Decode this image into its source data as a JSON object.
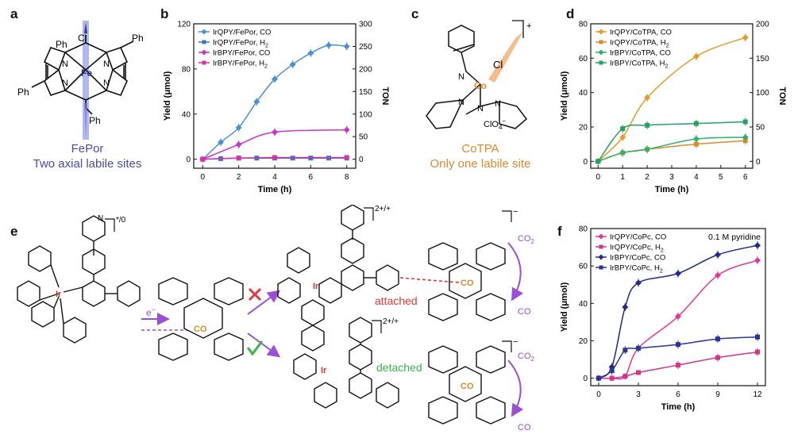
{
  "panels": {
    "a": {
      "letter": "a",
      "labels": {
        "ph": "Ph",
        "cl": "Cl",
        "fe": "Fe",
        "n": "N"
      },
      "caption_line1": "FePor",
      "caption_line2": "Two axial labile sites",
      "caption_color": "#4a4aa8"
    },
    "b": {
      "letter": "b",
      "chart_data": {
        "type": "line",
        "xlabel": "Time (h)",
        "ylabel": "Yield (μmol)",
        "y2label": "TON",
        "xlim": [
          -0.5,
          8.5
        ],
        "ylim": [
          -8,
          120
        ],
        "y2lim": [
          -20,
          300
        ],
        "xticks": [
          0,
          2,
          4,
          6,
          8
        ],
        "yticks": [
          0,
          40,
          80,
          120
        ],
        "y2ticks": [
          0,
          50,
          100,
          150,
          200,
          250,
          300
        ],
        "legend_position": "top-left",
        "series": [
          {
            "name": "IrQPY/FePor, CO",
            "sub": "",
            "color": "#4a90d9",
            "marker": "diamond",
            "x": [
              0,
              1,
              2,
              3,
              4,
              5,
              6,
              7,
              8
            ],
            "y": [
              0,
              15,
              28,
              51,
              71,
              84,
              94,
              101,
              100
            ]
          },
          {
            "name": "IrQPY/FePor, H",
            "sub": "2",
            "color": "#3a78c2",
            "marker": "square",
            "x": [
              0,
              1,
              2,
              3,
              4,
              5,
              6,
              7,
              8
            ],
            "y": [
              0,
              0.5,
              1,
              1,
              1,
              1,
              1,
              1,
              1
            ]
          },
          {
            "name": "IrBPY/FePor, CO",
            "sub": "",
            "color": "#cc33cc",
            "marker": "diamond",
            "x": [
              0,
              2,
              4,
              8
            ],
            "y": [
              0,
              13,
              24,
              26
            ]
          },
          {
            "name": "IrBPY/FePor, H",
            "sub": "2",
            "color": "#d633a8",
            "marker": "square",
            "x": [
              0,
              2,
              4,
              8
            ],
            "y": [
              0,
              1,
              1.5,
              1.5
            ]
          }
        ]
      }
    },
    "c": {
      "letter": "c",
      "labels": {
        "co": "Co",
        "cl": "Cl",
        "n": "N",
        "counter": "ClO",
        "counter_sub": "4",
        "counter_sup": "−",
        "charge": "+"
      },
      "caption_line1": "CoTPA",
      "caption_line2": "Only one labile site",
      "caption_color": "#e08a2e"
    },
    "d": {
      "letter": "d",
      "chart_data": {
        "type": "line",
        "xlabel": "Time (h)",
        "ylabel": "Yield (μmol)",
        "y2label": "TON",
        "xlim": [
          -0.3,
          6.3
        ],
        "ylim": [
          -4,
          80
        ],
        "y2lim": [
          -10,
          200
        ],
        "xticks": [
          0,
          1,
          2,
          3,
          4,
          5,
          6
        ],
        "yticks": [
          0,
          20,
          40,
          60,
          80
        ],
        "y2ticks": [
          0,
          50,
          100,
          150,
          200
        ],
        "legend_position": "top-left",
        "series": [
          {
            "name": "IrQPY/CoTPA, CO",
            "sub": "",
            "color": "#e89a2a",
            "marker": "diamond",
            "x": [
              0,
              1,
              2,
              4,
              6
            ],
            "y": [
              0,
              14,
              37,
              61,
              72
            ]
          },
          {
            "name": "IrQPY/CoTPA, H",
            "sub": "2",
            "color": "#e08a2e",
            "marker": "square",
            "x": [
              0,
              1,
              2,
              4,
              6
            ],
            "y": [
              0,
              5,
              7,
              10,
              12
            ]
          },
          {
            "name": "IrBPY/CoTPA, CO",
            "sub": "",
            "color": "#2bb56b",
            "marker": "diamond",
            "x": [
              0,
              1,
              2,
              4,
              6
            ],
            "y": [
              0,
              5,
              7,
              13,
              14
            ]
          },
          {
            "name": "IrBPY/CoTPA, H",
            "sub": "2",
            "color": "#23a35e",
            "marker": "square",
            "x": [
              0,
              1,
              2,
              4,
              6
            ],
            "y": [
              0,
              19,
              21,
              22,
              23
            ]
          }
        ]
      }
    },
    "e": {
      "letter": "e",
      "labels": {
        "ir": "Ir",
        "co": "CO",
        "n": "N",
        "charge_left": "*/0",
        "charge_top": "2+/+",
        "charge_bottom": "2+/+",
        "charge_minus": "−",
        "electron": "e",
        "electron_sup": "−",
        "attached": "attached",
        "detached": "detached",
        "co2": "CO",
        "co2_sub": "2"
      },
      "colors": {
        "attached": "#e03a3a",
        "detached": "#3cb34a",
        "arrow": "#9b4fd6",
        "co_atom": "#e08a2e",
        "ir_atom": "#c0392b"
      }
    },
    "f": {
      "letter": "f",
      "chart_data": {
        "type": "line",
        "annotation": "0.1 M pyridine",
        "xlabel": "Time (h)",
        "ylabel": "Yield (μmol)",
        "xlim": [
          -0.6,
          12.6
        ],
        "ylim": [
          -4,
          80
        ],
        "xticks": [
          0,
          3,
          6,
          9,
          12
        ],
        "yticks": [
          0,
          20,
          40,
          60,
          80
        ],
        "legend_position": "top-left",
        "series": [
          {
            "name": "IrQPY/CoPc, CO",
            "sub": "",
            "color": "#e0399a",
            "marker": "diamond",
            "x": [
              0,
              1,
              2,
              3,
              6,
              9,
              12
            ],
            "y": [
              0,
              0,
              1,
              16,
              33,
              55,
              63
            ]
          },
          {
            "name": "IrQPY/CoPc, H",
            "sub": "2",
            "color": "#d6338a",
            "marker": "square",
            "x": [
              0,
              1,
              2,
              3,
              6,
              9,
              12
            ],
            "y": [
              0,
              0,
              1,
              3,
              7,
              11,
              14
            ]
          },
          {
            "name": "IrBPY/CoPc, CO",
            "sub": "",
            "color": "#1e2a8c",
            "marker": "diamond",
            "x": [
              0,
              1,
              2,
              3,
              6,
              9,
              12
            ],
            "y": [
              0,
              6,
              38,
              51,
              56,
              66,
              71
            ]
          },
          {
            "name": "IrBPY/CoPc, H",
            "sub": "2",
            "color": "#2a3596",
            "marker": "square",
            "x": [
              0,
              1,
              2,
              3,
              6,
              9,
              12
            ],
            "y": [
              0,
              4,
              15,
              16,
              18,
              21,
              22
            ]
          }
        ]
      }
    }
  }
}
